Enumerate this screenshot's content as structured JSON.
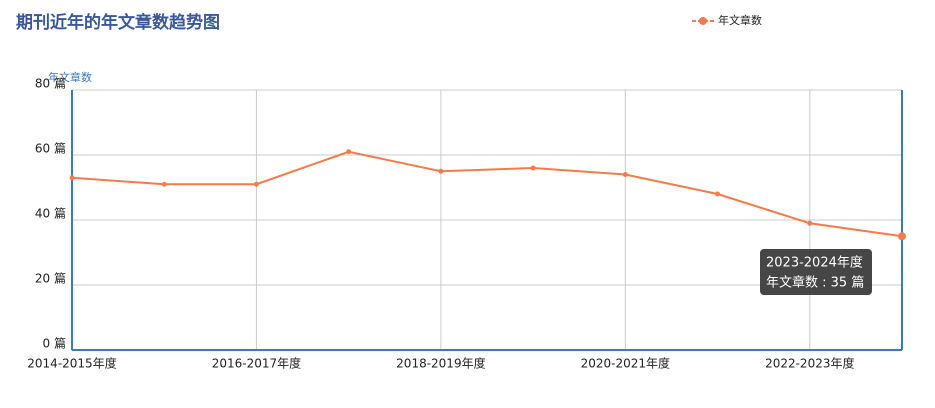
{
  "chart_data": {
    "type": "line",
    "title": "期刊近年的年文章数趋势图",
    "y_axis_label": "年文章数",
    "categories": [
      "2014-2015年度",
      null,
      "2016-2017年度",
      null,
      "2018-2019年度",
      null,
      "2020-2021年度",
      null,
      "2022-2023年度",
      null
    ],
    "series": [
      {
        "name": "年文章数",
        "color": "#f47c4c",
        "values": [
          53,
          51,
          51,
          61,
          55,
          56,
          54,
          48,
          39,
          35
        ]
      }
    ],
    "ylim": [
      0,
      80
    ],
    "yticks": [
      {
        "value": 0,
        "label": "0 篇"
      },
      {
        "value": 20,
        "label": "20 篇"
      },
      {
        "value": 40,
        "label": "40 篇"
      },
      {
        "value": 60,
        "label": "60 篇"
      },
      {
        "value": 80,
        "label": "80 篇"
      }
    ],
    "grid": true,
    "legend": "top-right",
    "tooltip": {
      "category": "2023-2024年度",
      "text": "年文章数 : 35 篇"
    }
  }
}
